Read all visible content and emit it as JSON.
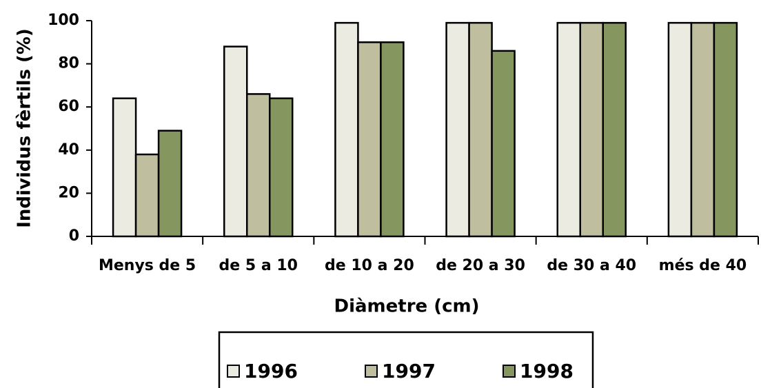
{
  "chart_data": {
    "type": "bar",
    "x_label": "Diàmetre (cm)",
    "y_label": "Individus fèrtils (%)",
    "categories": [
      "Menys de 5",
      "de 5 a 10",
      "de 10 a 20",
      "de 20 a 30",
      "de 30 a 40",
      "més de 40"
    ],
    "series": [
      {
        "name": "1996",
        "color": "#ecebe1",
        "values": [
          64,
          88,
          99,
          99,
          99,
          99
        ]
      },
      {
        "name": "1997",
        "color": "#bfbfa0",
        "values": [
          38,
          66,
          90,
          99,
          99,
          99
        ]
      },
      {
        "name": "1998",
        "color": "#85965e",
        "values": [
          49,
          64,
          90,
          86,
          99,
          99
        ]
      }
    ],
    "ylim": [
      0,
      100
    ],
    "yticks": [
      0,
      20,
      40,
      60,
      80,
      100
    ]
  }
}
